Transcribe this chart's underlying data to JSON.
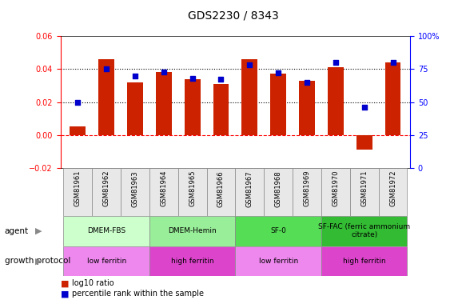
{
  "title": "GDS2230 / 8343",
  "samples": [
    "GSM81961",
    "GSM81962",
    "GSM81963",
    "GSM81964",
    "GSM81965",
    "GSM81966",
    "GSM81967",
    "GSM81968",
    "GSM81969",
    "GSM81970",
    "GSM81971",
    "GSM81972"
  ],
  "log10_ratio": [
    0.005,
    0.046,
    0.032,
    0.038,
    0.034,
    0.031,
    0.046,
    0.037,
    0.033,
    0.041,
    -0.009,
    0.044
  ],
  "percentile_rank": [
    50,
    75,
    70,
    73,
    68,
    67,
    78,
    72,
    65,
    80,
    46,
    80
  ],
  "ylim_left": [
    -0.02,
    0.06
  ],
  "ylim_right": [
    0,
    100
  ],
  "yticks_left": [
    -0.02,
    0.0,
    0.02,
    0.04,
    0.06
  ],
  "yticks_right": [
    0,
    25,
    50,
    75,
    100
  ],
  "bar_color": "#cc2200",
  "dot_color": "#0000cc",
  "agent_groups": [
    {
      "label": "DMEM-FBS",
      "start": 0,
      "end": 3,
      "color": "#ccffcc"
    },
    {
      "label": "DMEM-Hemin",
      "start": 3,
      "end": 6,
      "color": "#99ee99"
    },
    {
      "label": "SF-0",
      "start": 6,
      "end": 9,
      "color": "#55dd55"
    },
    {
      "label": "SF-FAC (ferric ammonium\ncitrate)",
      "start": 9,
      "end": 12,
      "color": "#33bb33"
    }
  ],
  "growth_groups": [
    {
      "label": "low ferritin",
      "start": 0,
      "end": 3,
      "color": "#ee88ee"
    },
    {
      "label": "high ferritin",
      "start": 3,
      "end": 6,
      "color": "#dd44cc"
    },
    {
      "label": "low ferritin",
      "start": 6,
      "end": 9,
      "color": "#ee88ee"
    },
    {
      "label": "high ferritin",
      "start": 9,
      "end": 12,
      "color": "#dd44cc"
    }
  ],
  "agent_label": "agent",
  "growth_label": "growth protocol",
  "legend_log10": "log10 ratio",
  "legend_pct": "percentile rank within the sample"
}
